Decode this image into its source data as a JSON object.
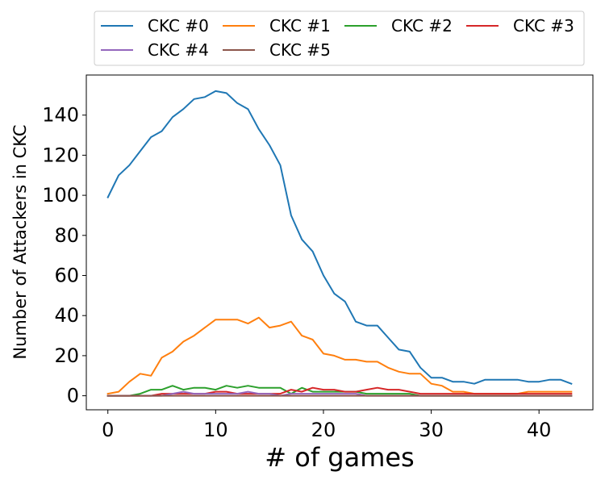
{
  "chart_data": {
    "type": "line",
    "title": "",
    "xlabel": "# of games",
    "ylabel": "Number of Attackers in CKC",
    "xlim": [
      -2,
      45
    ],
    "ylim": [
      -7,
      160
    ],
    "xticks": [
      0,
      10,
      20,
      30,
      40
    ],
    "yticks": [
      0,
      20,
      40,
      60,
      80,
      100,
      120,
      140
    ],
    "grid": false,
    "legend": {
      "placement": "top, above plot",
      "columns": 4
    },
    "x": [
      0,
      1,
      2,
      3,
      4,
      5,
      6,
      7,
      8,
      9,
      10,
      11,
      12,
      13,
      14,
      15,
      16,
      17,
      18,
      19,
      20,
      21,
      22,
      23,
      24,
      25,
      26,
      27,
      28,
      29,
      30,
      31,
      32,
      33,
      34,
      35,
      36,
      37,
      38,
      39,
      40,
      41,
      42,
      43
    ],
    "series": [
      {
        "name": "CKC #0",
        "color": "#1f77b4",
        "values": [
          99,
          110,
          115,
          122,
          129,
          132,
          139,
          143,
          148,
          149,
          152,
          151,
          146,
          143,
          133,
          125,
          115,
          90,
          78,
          72,
          60,
          51,
          47,
          37,
          35,
          35,
          29,
          23,
          22,
          14,
          9,
          9,
          7,
          7,
          6,
          8,
          8,
          8,
          8,
          7,
          7,
          8,
          8,
          6
        ]
      },
      {
        "name": "CKC #1",
        "color": "#ff7f0e",
        "values": [
          1,
          2,
          7,
          11,
          10,
          19,
          22,
          27,
          30,
          34,
          38,
          38,
          38,
          36,
          39,
          34,
          35,
          37,
          30,
          28,
          21,
          20,
          18,
          18,
          17,
          17,
          14,
          12,
          11,
          11,
          6,
          5,
          2,
          2,
          1,
          1,
          1,
          1,
          1,
          2,
          2,
          2,
          2,
          2
        ]
      },
      {
        "name": "CKC #2",
        "color": "#2ca02c",
        "values": [
          0,
          0,
          0,
          1,
          3,
          3,
          5,
          3,
          4,
          4,
          3,
          5,
          4,
          5,
          4,
          4,
          4,
          1,
          4,
          2,
          2,
          2,
          2,
          2,
          1,
          1,
          1,
          1,
          1,
          0,
          0,
          0,
          0,
          0,
          0,
          0,
          0,
          0,
          0,
          0,
          0,
          0,
          0,
          0
        ]
      },
      {
        "name": "CKC #3",
        "color": "#d62728",
        "values": [
          0,
          0,
          0,
          0,
          0,
          1,
          1,
          1,
          1,
          1,
          2,
          2,
          1,
          1,
          1,
          1,
          1,
          3,
          2,
          4,
          3,
          3,
          2,
          2,
          3,
          4,
          3,
          3,
          2,
          1,
          1,
          1,
          1,
          1,
          1,
          1,
          1,
          1,
          1,
          1,
          1,
          1,
          1,
          1
        ]
      },
      {
        "name": "CKC #4",
        "color": "#9467bd",
        "values": [
          0,
          0,
          0,
          0,
          0,
          0,
          1,
          2,
          1,
          1,
          1,
          1,
          1,
          2,
          1,
          1,
          0,
          1,
          1,
          1,
          1,
          1,
          1,
          1,
          0,
          0,
          0,
          0,
          0,
          0,
          0,
          0,
          0,
          0,
          0,
          0,
          0,
          0,
          0,
          0,
          0,
          0,
          0,
          0
        ]
      },
      {
        "name": "CKC #5",
        "color": "#8c564b",
        "values": [
          0,
          0,
          0,
          0,
          0,
          0,
          0,
          0,
          0,
          0,
          0,
          0,
          0,
          0,
          0,
          0,
          0,
          0,
          0,
          0,
          0,
          0,
          0,
          0,
          0,
          0,
          0,
          0,
          0,
          0,
          0,
          0,
          0,
          0,
          0,
          0,
          0,
          0,
          0,
          0,
          0,
          0,
          0,
          0
        ]
      }
    ]
  }
}
